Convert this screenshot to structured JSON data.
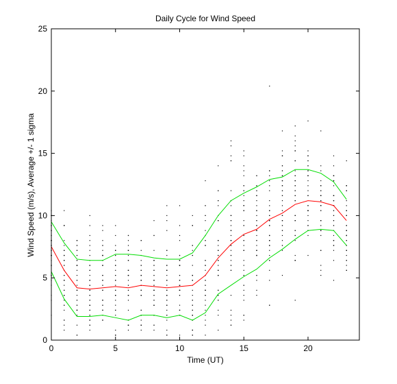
{
  "chart_data": {
    "type": "line",
    "title": "Daily Cycle for Wind Speed",
    "xlabel": "Time (UT)",
    "ylabel": "Wind Speed (m/s), Average +/- 1 sigma",
    "xlim": [
      0,
      24
    ],
    "ylim": [
      0,
      25
    ],
    "xticks": [
      "0",
      "5",
      "10",
      "15",
      "20"
    ],
    "yticks": [
      "0",
      "5",
      "10",
      "15",
      "20",
      "25"
    ],
    "grid": false,
    "x": [
      0,
      1,
      2,
      3,
      4,
      5,
      6,
      7,
      8,
      9,
      10,
      11,
      12,
      13,
      14,
      15,
      16,
      17,
      18,
      19,
      20,
      21,
      22,
      23
    ],
    "series": [
      {
        "color": "#00dd00",
        "values": [
          9.5,
          7.8,
          6.5,
          6.4,
          6.4,
          6.9,
          6.9,
          6.8,
          6.6,
          6.5,
          6.5,
          7.0,
          8.4,
          10.0,
          11.2,
          11.8,
          12.3,
          12.9,
          13.1,
          13.7,
          13.7,
          13.4,
          12.7,
          11.3
        ]
      },
      {
        "color": "#ff0000",
        "values": [
          7.5,
          5.6,
          4.2,
          4.1,
          4.2,
          4.3,
          4.2,
          4.4,
          4.3,
          4.2,
          4.3,
          4.4,
          5.2,
          6.6,
          7.7,
          8.5,
          8.9,
          9.7,
          10.2,
          10.9,
          11.2,
          11.1,
          10.8,
          9.6
        ]
      },
      {
        "color": "#00dd00",
        "values": [
          5.5,
          3.3,
          1.9,
          1.9,
          2.0,
          1.8,
          1.6,
          2.0,
          2.0,
          1.8,
          2.0,
          1.6,
          2.2,
          3.7,
          4.4,
          5.1,
          5.7,
          6.6,
          7.3,
          8.1,
          8.8,
          8.9,
          8.8,
          7.6
        ]
      }
    ]
  }
}
